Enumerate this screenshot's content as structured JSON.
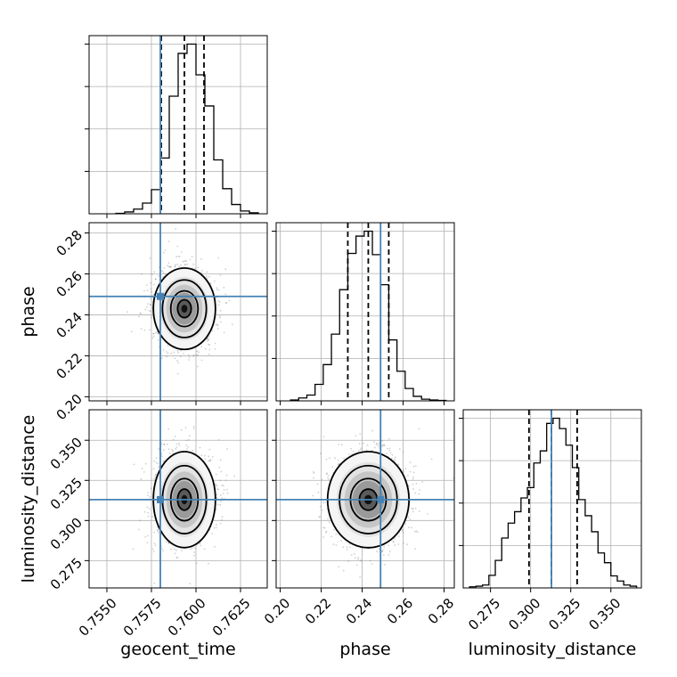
{
  "chart_data": {
    "type": "corner",
    "parameters": [
      "geocent_time",
      "phase",
      "luminosity_distance"
    ],
    "truths": [
      0.758,
      0.249,
      0.313
    ],
    "truth_color": "#4682b4",
    "grid": true,
    "ranges": [
      [
        0.754,
        0.764
      ],
      [
        0.198,
        0.285
      ],
      [
        0.258,
        0.369
      ]
    ],
    "ticks": [
      {
        "values": [
          0.755,
          0.7575,
          0.76,
          0.7625
        ],
        "labels": [
          "0.7550",
          "0.7575",
          "0.7600",
          "0.7625"
        ]
      },
      {
        "values": [
          0.2,
          0.22,
          0.24,
          0.26,
          0.28
        ],
        "labels": [
          "0.20",
          "0.22",
          "0.24",
          "0.26",
          "0.28"
        ]
      },
      {
        "values": [
          0.275,
          0.3,
          0.325,
          0.35
        ],
        "labels": [
          "0.275",
          "0.300",
          "0.325",
          "0.350"
        ]
      }
    ],
    "histograms": [
      {
        "quantiles": [
          0.75805,
          0.75935,
          0.76045
        ],
        "edges": [
          0.7555,
          0.756,
          0.7565,
          0.757,
          0.7575,
          0.758,
          0.7585,
          0.759,
          0.7595,
          0.76,
          0.7605,
          0.761,
          0.7615,
          0.762,
          0.7625,
          0.763,
          0.7635
        ],
        "counts": [
          1,
          4,
          10,
          23,
          52,
          120,
          253,
          345,
          365,
          299,
          232,
          116,
          54,
          20,
          6,
          2
        ]
      },
      {
        "quantiles": [
          0.233,
          0.243,
          0.253
        ],
        "edges": [
          0.205,
          0.209,
          0.213,
          0.217,
          0.221,
          0.225,
          0.229,
          0.233,
          0.237,
          0.241,
          0.245,
          0.249,
          0.253,
          0.257,
          0.261,
          0.265,
          0.269,
          0.273,
          0.277,
          0.281
        ],
        "counts": [
          2,
          7,
          14,
          40,
          88,
          162,
          270,
          358,
          400,
          412,
          355,
          282,
          148,
          72,
          30,
          11,
          4,
          2,
          1
        ]
      },
      {
        "quantiles": [
          0.299,
          0.313,
          0.329
        ],
        "edges": [
          0.262,
          0.266,
          0.27,
          0.274,
          0.278,
          0.282,
          0.286,
          0.29,
          0.294,
          0.298,
          0.302,
          0.306,
          0.31,
          0.314,
          0.318,
          0.322,
          0.326,
          0.33,
          0.334,
          0.338,
          0.342,
          0.346,
          0.35,
          0.354,
          0.358,
          0.362,
          0.366
        ],
        "counts": [
          2,
          3,
          5,
          22,
          48,
          87,
          113,
          133,
          157,
          175,
          218,
          239,
          287,
          296,
          278,
          249,
          210,
          154,
          126,
          98,
          61,
          44,
          21,
          12,
          5,
          3
        ]
      }
    ],
    "joint": [
      {
        "x": "geocent_time",
        "y": "phase",
        "center": [
          0.75935,
          0.243
        ],
        "spread": [
          0.00085,
          0.0097
        ]
      },
      {
        "x": "geocent_time",
        "y": "luminosity_distance",
        "center": [
          0.75935,
          0.313
        ],
        "spread": [
          0.00085,
          0.0146
        ]
      },
      {
        "x": "phase",
        "y": "luminosity_distance",
        "center": [
          0.243,
          0.313
        ],
        "spread": [
          0.0097,
          0.0146
        ]
      }
    ]
  }
}
